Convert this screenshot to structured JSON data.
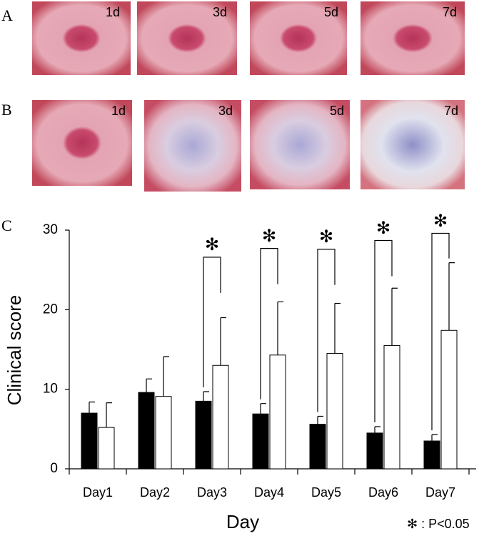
{
  "panel_labels": [
    "A",
    "B",
    "C"
  ],
  "photo_rows": [
    {
      "labels": [
        "1d",
        "3d",
        "5d",
        "7d"
      ]
    },
    {
      "labels": [
        "1d",
        "3d",
        "5d",
        "7d"
      ]
    }
  ],
  "chart_data": {
    "type": "bar",
    "y_label": "Clinical score",
    "x_label": "Day",
    "categories": [
      "Day1",
      "Day2",
      "Day3",
      "Day4",
      "Day5",
      "Day6",
      "Day7"
    ],
    "series": [
      {
        "color": "#000000",
        "values": [
          7.0,
          9.6,
          8.5,
          6.9,
          5.6,
          4.5,
          3.5
        ],
        "errors": [
          1.4,
          1.7,
          1.2,
          1.3,
          1.0,
          0.8,
          0.8
        ]
      },
      {
        "color": "#ffffff",
        "values": [
          5.2,
          9.1,
          13.0,
          14.3,
          14.5,
          15.5,
          17.4
        ],
        "errors": [
          3.1,
          5.0,
          6.0,
          6.7,
          6.3,
          7.2,
          8.5
        ]
      }
    ],
    "ylim": [
      0,
      30
    ],
    "yticks": [
      0,
      10,
      20,
      30
    ],
    "significance": [
      {
        "category": 2,
        "y": 26.6,
        "label": "✻"
      },
      {
        "category": 3,
        "y": 27.7,
        "label": "✻"
      },
      {
        "category": 4,
        "y": 27.6,
        "label": "✻"
      },
      {
        "category": 5,
        "y": 28.7,
        "label": "✻"
      },
      {
        "category": 6,
        "y": 29.6,
        "label": "✻"
      }
    ],
    "legend_note": "✻ : P<0.05"
  }
}
